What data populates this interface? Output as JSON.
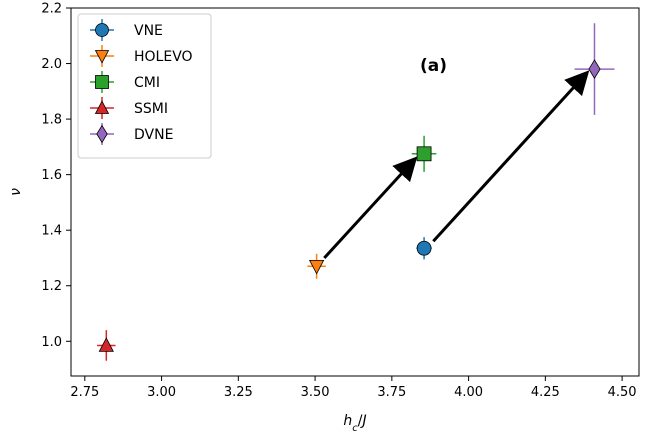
{
  "chart_data": {
    "type": "scatter",
    "xlabel": "h_c/J",
    "ylabel": "ν",
    "xlim": [
      2.705,
      4.555
    ],
    "ylim": [
      0.875,
      2.2
    ],
    "xticks": [
      2.75,
      3.0,
      3.25,
      3.5,
      3.75,
      4.0,
      4.25,
      4.5
    ],
    "xtick_labels": [
      "2.75",
      "3.00",
      "3.25",
      "3.50",
      "3.75",
      "4.00",
      "4.25",
      "4.50"
    ],
    "yticks": [
      1.0,
      1.2,
      1.4,
      1.6,
      1.8,
      2.0,
      2.2
    ],
    "ytick_labels": [
      "1.0",
      "1.2",
      "1.4",
      "1.6",
      "1.8",
      "2.0",
      "2.2"
    ],
    "grid": false,
    "legend_position": "top-left",
    "annotation": "(a)",
    "series": [
      {
        "name": "VNE",
        "marker": "circle",
        "color": "#1f77b4",
        "points": [
          {
            "x": 3.855,
            "y": 1.335,
            "xerr": 0.025,
            "yerr": 0.04
          }
        ]
      },
      {
        "name": "HOLEVO",
        "marker": "triangle-down",
        "color": "#ff7f0e",
        "points": [
          {
            "x": 3.505,
            "y": 1.27,
            "xerr": 0.03,
            "yerr": 0.045
          }
        ]
      },
      {
        "name": "CMI",
        "marker": "square",
        "color": "#2ca02c",
        "points": [
          {
            "x": 3.855,
            "y": 1.675,
            "xerr": 0.04,
            "yerr": 0.065
          }
        ]
      },
      {
        "name": "SSMI",
        "marker": "triangle-up",
        "color": "#d62728",
        "points": [
          {
            "x": 2.82,
            "y": 0.985,
            "xerr": 0.03,
            "yerr": 0.055
          }
        ]
      },
      {
        "name": "DVNE",
        "marker": "diamond",
        "color": "#9467bd",
        "points": [
          {
            "x": 4.41,
            "y": 1.98,
            "xerr": 0.065,
            "yerr": 0.165
          }
        ]
      }
    ],
    "arrows": [
      {
        "from": {
          "x": 3.53,
          "y": 1.3
        },
        "to": {
          "x": 3.82,
          "y": 1.65
        }
      },
      {
        "from": {
          "x": 3.885,
          "y": 1.36
        },
        "to": {
          "x": 4.38,
          "y": 1.96
        }
      }
    ]
  }
}
